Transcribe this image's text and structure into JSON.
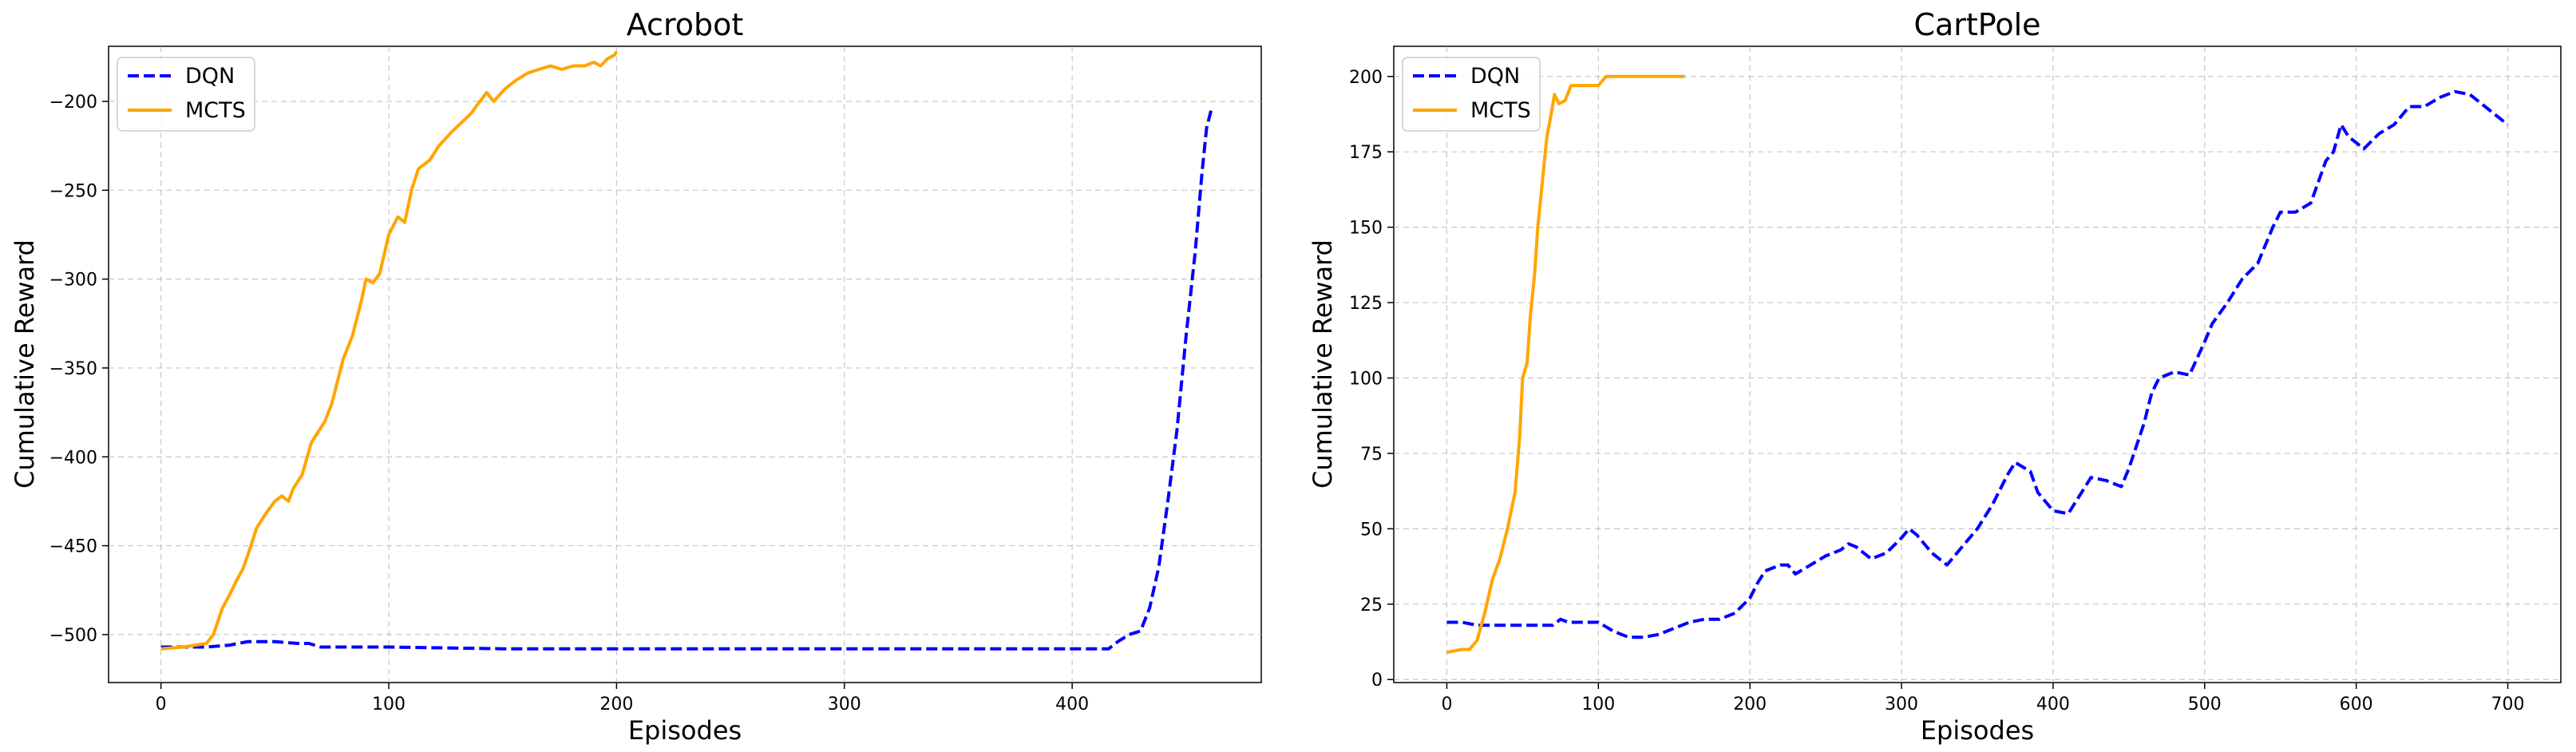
{
  "chart_data": [
    {
      "type": "line",
      "title": "Acrobot",
      "xlabel": "Episodes",
      "ylabel": "Cumulative Reward",
      "xlim": [
        -23,
        483
      ],
      "ylim": [
        -527,
        -169
      ],
      "xticks": [
        0,
        100,
        200,
        300,
        400
      ],
      "yticks": [
        -500,
        -450,
        -400,
        -350,
        -300,
        -250,
        -200
      ],
      "grid": true,
      "legend_position": "top-left",
      "series": [
        {
          "name": "DQN",
          "color": "#0000ff",
          "style": "dashed",
          "points": [
            [
              0,
              -507
            ],
            [
              10,
              -507
            ],
            [
              20,
              -507
            ],
            [
              30,
              -506
            ],
            [
              38,
              -504
            ],
            [
              50,
              -504
            ],
            [
              60,
              -505
            ],
            [
              65,
              -505
            ],
            [
              70,
              -507
            ],
            [
              100,
              -507
            ],
            [
              150,
              -508
            ],
            [
              200,
              -508
            ],
            [
              300,
              -508
            ],
            [
              400,
              -508
            ],
            [
              416,
              -508
            ],
            [
              420,
              -504
            ],
            [
              425,
              -500
            ],
            [
              430,
              -498
            ],
            [
              434,
              -485
            ],
            [
              438,
              -462
            ],
            [
              442,
              -425
            ],
            [
              446,
              -385
            ],
            [
              450,
              -332
            ],
            [
              454,
              -285
            ],
            [
              457,
              -240
            ],
            [
              459,
              -215
            ],
            [
              461,
              -205
            ]
          ]
        },
        {
          "name": "MCTS",
          "color": "#ffa500",
          "style": "solid",
          "points": [
            [
              0,
              -508
            ],
            [
              10,
              -507
            ],
            [
              20,
              -505
            ],
            [
              23,
              -500
            ],
            [
              27,
              -485
            ],
            [
              30,
              -478
            ],
            [
              33,
              -470
            ],
            [
              36,
              -463
            ],
            [
              39,
              -452
            ],
            [
              42,
              -440
            ],
            [
              46,
              -432
            ],
            [
              50,
              -425
            ],
            [
              53,
              -422
            ],
            [
              56,
              -425
            ],
            [
              58,
              -418
            ],
            [
              62,
              -410
            ],
            [
              66,
              -392
            ],
            [
              68,
              -388
            ],
            [
              72,
              -380
            ],
            [
              75,
              -370
            ],
            [
              80,
              -345
            ],
            [
              84,
              -332
            ],
            [
              88,
              -312
            ],
            [
              90,
              -300
            ],
            [
              93,
              -302
            ],
            [
              96,
              -297
            ],
            [
              100,
              -275
            ],
            [
              104,
              -265
            ],
            [
              107,
              -268
            ],
            [
              110,
              -250
            ],
            [
              113,
              -238
            ],
            [
              118,
              -233
            ],
            [
              122,
              -225
            ],
            [
              127,
              -218
            ],
            [
              131,
              -213
            ],
            [
              136,
              -207
            ],
            [
              140,
              -200
            ],
            [
              143,
              -195
            ],
            [
              146,
              -200
            ],
            [
              151,
              -193
            ],
            [
              156,
              -188
            ],
            [
              161,
              -184
            ],
            [
              166,
              -182
            ],
            [
              171,
              -180
            ],
            [
              176,
              -182
            ],
            [
              181,
              -180
            ],
            [
              186,
              -180
            ],
            [
              190,
              -178
            ],
            [
              193,
              -180
            ],
            [
              196,
              -176
            ],
            [
              199,
              -174
            ],
            [
              200,
              -172
            ]
          ]
        }
      ]
    },
    {
      "type": "line",
      "title": "CartPole",
      "xlabel": "Episodes",
      "ylabel": "Cumulative Reward",
      "xlim": [
        -35,
        735
      ],
      "ylim": [
        -1,
        210
      ],
      "xticks": [
        0,
        100,
        200,
        300,
        400,
        500,
        600,
        700
      ],
      "yticks": [
        0,
        25,
        50,
        75,
        100,
        125,
        150,
        175,
        200
      ],
      "grid": true,
      "legend_position": "top-left",
      "series": [
        {
          "name": "DQN",
          "color": "#0000ff",
          "style": "dashed",
          "points": [
            [
              0,
              19
            ],
            [
              10,
              19
            ],
            [
              20,
              18
            ],
            [
              30,
              18
            ],
            [
              40,
              18
            ],
            [
              50,
              18
            ],
            [
              60,
              18
            ],
            [
              70,
              18
            ],
            [
              75,
              20
            ],
            [
              80,
              19
            ],
            [
              90,
              19
            ],
            [
              100,
              19
            ],
            [
              110,
              16
            ],
            [
              120,
              14
            ],
            [
              130,
              14
            ],
            [
              140,
              15
            ],
            [
              150,
              17
            ],
            [
              160,
              19
            ],
            [
              170,
              20
            ],
            [
              180,
              20
            ],
            [
              190,
              22
            ],
            [
              200,
              27
            ],
            [
              205,
              32
            ],
            [
              210,
              36
            ],
            [
              220,
              38
            ],
            [
              225,
              38
            ],
            [
              230,
              35
            ],
            [
              240,
              38
            ],
            [
              250,
              41
            ],
            [
              260,
              43
            ],
            [
              265,
              45
            ],
            [
              270,
              44
            ],
            [
              280,
              40
            ],
            [
              290,
              42
            ],
            [
              300,
              47
            ],
            [
              305,
              50
            ],
            [
              310,
              48
            ],
            [
              320,
              42
            ],
            [
              330,
              38
            ],
            [
              340,
              44
            ],
            [
              350,
              50
            ],
            [
              360,
              58
            ],
            [
              370,
              68
            ],
            [
              375,
              72
            ],
            [
              385,
              69
            ],
            [
              390,
              62
            ],
            [
              400,
              56
            ],
            [
              410,
              55
            ],
            [
              420,
              63
            ],
            [
              425,
              67
            ],
            [
              435,
              66
            ],
            [
              445,
              64
            ],
            [
              450,
              70
            ],
            [
              460,
              85
            ],
            [
              465,
              95
            ],
            [
              470,
              100
            ],
            [
              480,
              102
            ],
            [
              490,
              101
            ],
            [
              500,
              112
            ],
            [
              505,
              118
            ],
            [
              515,
              125
            ],
            [
              525,
              133
            ],
            [
              535,
              138
            ],
            [
              545,
              150
            ],
            [
              550,
              155
            ],
            [
              560,
              155
            ],
            [
              570,
              158
            ],
            [
              575,
              165
            ],
            [
              580,
              172
            ],
            [
              585,
              175
            ],
            [
              590,
              184
            ],
            [
              595,
              180
            ],
            [
              605,
              176
            ],
            [
              615,
              181
            ],
            [
              625,
              184
            ],
            [
              635,
              190
            ],
            [
              645,
              190
            ],
            [
              655,
              193
            ],
            [
              665,
              195
            ],
            [
              675,
              194
            ],
            [
              685,
              190
            ],
            [
              695,
              186
            ],
            [
              700,
              184
            ]
          ]
        },
        {
          "name": "MCTS",
          "color": "#ffa500",
          "style": "solid",
          "points": [
            [
              0,
              9
            ],
            [
              10,
              10
            ],
            [
              15,
              10
            ],
            [
              20,
              13
            ],
            [
              25,
              22
            ],
            [
              30,
              33
            ],
            [
              35,
              40
            ],
            [
              40,
              50
            ],
            [
              45,
              62
            ],
            [
              48,
              80
            ],
            [
              50,
              100
            ],
            [
              53,
              105
            ],
            [
              55,
              120
            ],
            [
              58,
              135
            ],
            [
              60,
              150
            ],
            [
              63,
              165
            ],
            [
              66,
              180
            ],
            [
              69,
              188
            ],
            [
              71,
              194
            ],
            [
              74,
              191
            ],
            [
              78,
              192
            ],
            [
              82,
              197
            ],
            [
              90,
              197
            ],
            [
              100,
              197
            ],
            [
              105,
              200
            ],
            [
              110,
              200
            ],
            [
              120,
              200
            ],
            [
              130,
              200
            ],
            [
              140,
              200
            ],
            [
              150,
              200
            ],
            [
              157,
              200
            ]
          ]
        }
      ]
    }
  ]
}
